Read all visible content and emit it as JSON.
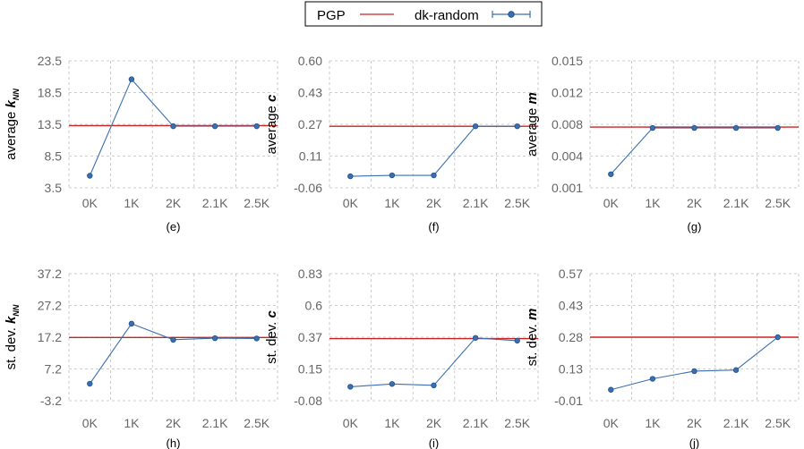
{
  "legend": {
    "items": [
      {
        "label": "PGP",
        "color": "#cc2222",
        "style": "line"
      },
      {
        "label": "dk-random",
        "color": "#3a6fb0",
        "style": "line-marker-errorbar"
      }
    ]
  },
  "chart_data": [
    {
      "id": "e",
      "type": "line",
      "caption": "(e)",
      "ylabel_prefix": "average ",
      "ylabel_var": "k",
      "ylabel_sub": "NN",
      "categories": [
        "0K",
        "1K",
        "2K",
        "2.1K",
        "2.5K"
      ],
      "yticks": [
        "23.5",
        "18.5",
        "13.5",
        "8.5",
        "3.5"
      ],
      "ylim": [
        3.5,
        23.5
      ],
      "reference": {
        "name": "PGP",
        "value": 13.3
      },
      "series": [
        {
          "name": "dk-random",
          "values": [
            5.4,
            20.6,
            13.2,
            13.2,
            13.2
          ]
        }
      ]
    },
    {
      "id": "f",
      "type": "line",
      "caption": "(f)",
      "ylabel_prefix": "average ",
      "ylabel_var": "c",
      "ylabel_sub": "",
      "categories": [
        "0K",
        "1K",
        "2K",
        "2.1K",
        "2.5K"
      ],
      "yticks": [
        "0.60",
        "0.43",
        "0.27",
        "0.11",
        "-0.06"
      ],
      "ylim": [
        -0.06,
        0.6
      ],
      "reference": {
        "name": "PGP",
        "value": 0.26
      },
      "series": [
        {
          "name": "dk-random",
          "values": [
            0.0,
            0.005,
            0.005,
            0.26,
            0.26
          ]
        }
      ]
    },
    {
      "id": "g",
      "type": "line",
      "caption": "(g)",
      "ylabel_prefix": "average ",
      "ylabel_var": "m",
      "ylabel_sub": "",
      "categories": [
        "0K",
        "1K",
        "2K",
        "2.1K",
        "2.5K"
      ],
      "yticks": [
        "0.015",
        "0.012",
        "0.008",
        "0.004",
        "0.001"
      ],
      "ylim": [
        0.001,
        0.015
      ],
      "reference": {
        "name": "PGP",
        "value": 0.0077
      },
      "series": [
        {
          "name": "dk-random",
          "values": [
            0.0025,
            0.0076,
            0.0076,
            0.0076,
            0.0076
          ]
        }
      ]
    },
    {
      "id": "h",
      "type": "line",
      "caption": "(h)",
      "ylabel_prefix": "st. dev. ",
      "ylabel_var": "k",
      "ylabel_sub": "NN",
      "categories": [
        "0K",
        "1K",
        "2K",
        "2.1K",
        "2.5K"
      ],
      "yticks": [
        "37.2",
        "27.2",
        "17.2",
        "7.2",
        "-3.2"
      ],
      "ylim": [
        -3.2,
        37.2
      ],
      "reference": {
        "name": "PGP",
        "value": 16.9
      },
      "series": [
        {
          "name": "dk-random",
          "values": [
            2.2,
            21.3,
            16.2,
            16.7,
            16.6
          ]
        }
      ]
    },
    {
      "id": "i",
      "type": "line",
      "caption": "(i)",
      "ylabel_prefix": "st. dev. ",
      "ylabel_var": "c",
      "ylabel_sub": "",
      "categories": [
        "0K",
        "1K",
        "2K",
        "2.1K",
        "2.5K"
      ],
      "yticks": [
        "0.83",
        "0.6",
        "0.37",
        "0.15",
        "-0.08"
      ],
      "ylim": [
        -0.08,
        0.83
      ],
      "reference": {
        "name": "PGP",
        "value": 0.365
      },
      "series": [
        {
          "name": "dk-random",
          "values": [
            0.02,
            0.04,
            0.03,
            0.37,
            0.35
          ]
        }
      ]
    },
    {
      "id": "j",
      "type": "line",
      "caption": "(j)",
      "ylabel_prefix": "st. dev. ",
      "ylabel_var": "m",
      "ylabel_sub": "",
      "categories": [
        "0K",
        "1K",
        "2K",
        "2.1K",
        "2.5K"
      ],
      "yticks": [
        "0.57",
        "0.43",
        "0.28",
        "0.13",
        "-0.01"
      ],
      "ylim": [
        -0.01,
        0.57
      ],
      "reference": {
        "name": "PGP",
        "value": 0.28
      },
      "series": [
        {
          "name": "dk-random",
          "values": [
            0.04,
            0.09,
            0.125,
            0.13,
            0.28
          ]
        }
      ]
    }
  ]
}
